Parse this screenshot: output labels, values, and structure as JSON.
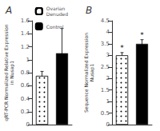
{
  "chart_data": [
    {
      "type": "bar",
      "title": "A",
      "ylabel": "qRT-PCR Normalized Relative Expression\nin Nusap1",
      "series": [
        {
          "name": "Ovarian\nDenuded",
          "color": "white",
          "values": [
            0.75
          ],
          "errors": [
            0.07
          ]
        },
        {
          "name": "Control",
          "color": "black",
          "values": [
            1.1
          ],
          "errors": [
            0.38
          ]
        }
      ],
      "ylim": [
        0,
        1.6
      ],
      "yticks": [
        0,
        0.2,
        0.4,
        0.6,
        0.8,
        1,
        1.2,
        1.4,
        1.6
      ],
      "grid": false,
      "tick_labels": "y",
      "legend": "upper right"
    },
    {
      "type": "bar",
      "title": "B",
      "ylabel": "Sequence Normalized Expression\nNusap1",
      "series": [
        {
          "name": "Ovarian\nDenuded",
          "color": "white",
          "values": [
            3.0
          ],
          "errors": [
            0.12
          ],
          "annotation": "*"
        },
        {
          "name": "Control",
          "color": "black",
          "values": [
            3.5
          ],
          "errors": [
            0.18
          ],
          "annotation": "*"
        }
      ],
      "ylim": [
        0,
        4.5
      ],
      "yticks": [
        0,
        0.5,
        1,
        1.5,
        2,
        2.5,
        3,
        3.5,
        4,
        4.5
      ],
      "grid": false,
      "tick_labels": "y"
    }
  ]
}
